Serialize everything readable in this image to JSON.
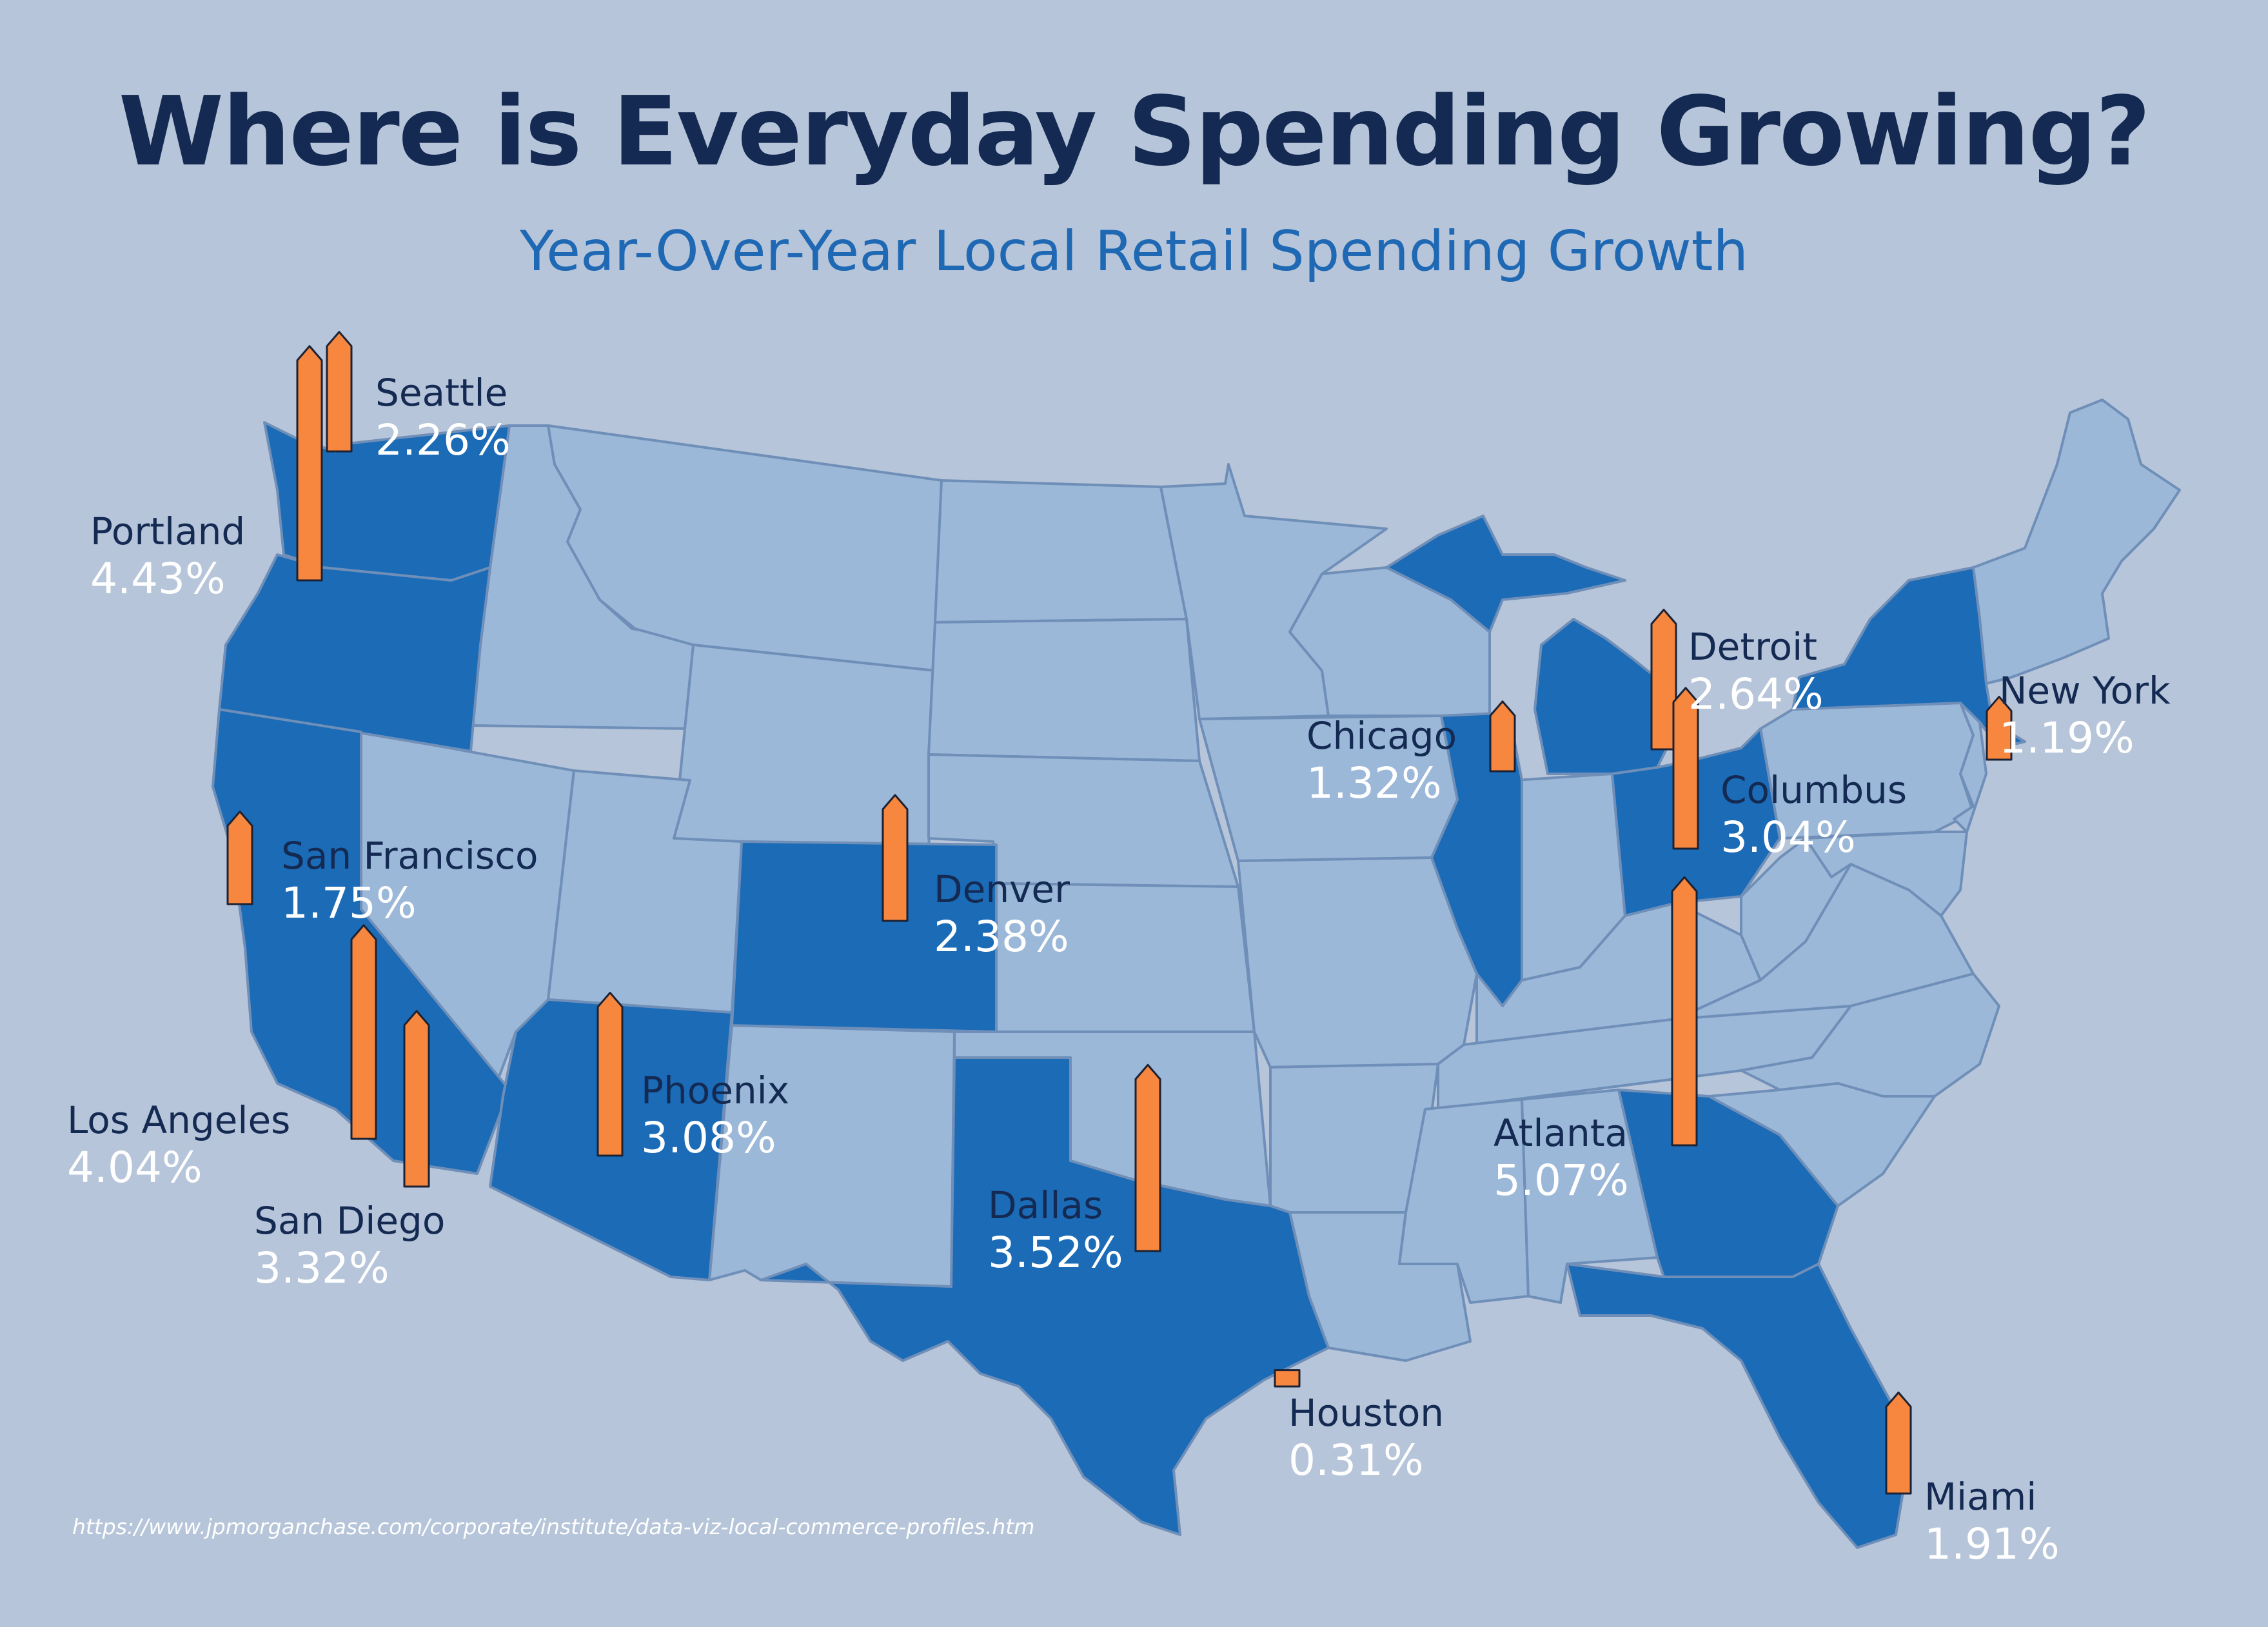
{
  "header": {
    "title": "Where is Everyday Spending Growing?",
    "subtitle": "Year-Over-Year Local Retail Spending Growth"
  },
  "colors": {
    "background": "#b6c5d9",
    "state_light": "#9bb8d8",
    "state_highlight": "#1b6bb7",
    "state_border": "#6f8fb8",
    "arrow_fill": "#f7873e",
    "arrow_stroke": "#1c2233",
    "label_name": "#142a52",
    "label_value": "#ffffff"
  },
  "cities": [
    {
      "id": "seattle",
      "name": "Seattle",
      "value": "2.26%",
      "growth": 2.26
    },
    {
      "id": "portland",
      "name": "Portland",
      "value": "4.43%",
      "growth": 4.43
    },
    {
      "id": "san-francisco",
      "name": "San Francisco",
      "value": "1.75%",
      "growth": 1.75
    },
    {
      "id": "los-angeles",
      "name": "Los Angeles",
      "value": "4.04%",
      "growth": 4.04
    },
    {
      "id": "san-diego",
      "name": "San Diego",
      "value": "3.32%",
      "growth": 3.32
    },
    {
      "id": "phoenix",
      "name": "Phoenix",
      "value": "3.08%",
      "growth": 3.08
    },
    {
      "id": "denver",
      "name": "Denver",
      "value": "2.38%",
      "growth": 2.38
    },
    {
      "id": "dallas",
      "name": "Dallas",
      "value": "3.52%",
      "growth": 3.52
    },
    {
      "id": "houston",
      "name": "Houston",
      "value": "0.31%",
      "growth": 0.31
    },
    {
      "id": "chicago",
      "name": "Chicago",
      "value": "1.32%",
      "growth": 1.32
    },
    {
      "id": "detroit",
      "name": "Detroit",
      "value": "2.64%",
      "growth": 2.64
    },
    {
      "id": "columbus",
      "name": "Columbus",
      "value": "3.04%",
      "growth": 3.04
    },
    {
      "id": "new-york",
      "name": "New York",
      "value": "1.19%",
      "growth": 1.19
    },
    {
      "id": "atlanta",
      "name": "Atlanta",
      "value": "5.07%",
      "growth": 5.07
    },
    {
      "id": "miami",
      "name": "Miami",
      "value": "1.91%",
      "growth": 1.91
    }
  ],
  "source": "https://www.jpmorganchase.com/corporate/institute/data-viz-local-commerce-profiles.htm"
}
